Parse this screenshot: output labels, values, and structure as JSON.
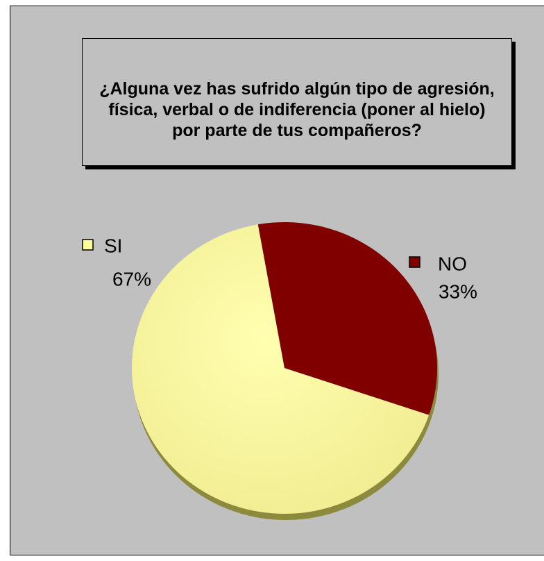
{
  "chart_data": {
    "type": "pie",
    "title": "¿Alguna vez has sufrido algún tipo de agresión, física, verbal o de indiferencia (poner al hielo) por parte de tus compañeros?",
    "categories": [
      "SI",
      "NO"
    ],
    "values": [
      67,
      33
    ],
    "value_labels": [
      "67%",
      "33%"
    ],
    "colors": [
      "#ffff99",
      "#800000"
    ]
  }
}
